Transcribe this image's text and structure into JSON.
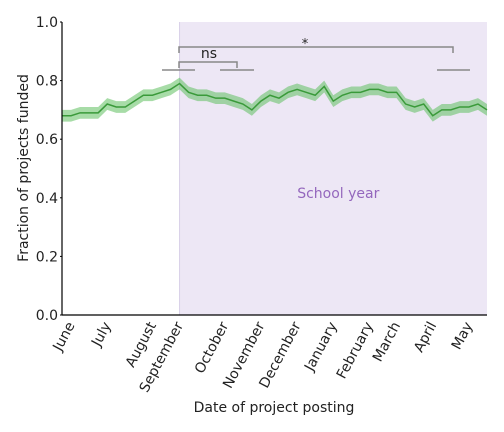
{
  "chart_data": {
    "type": "line",
    "x_label": "Date of project posting",
    "y_label": "Fraction of projects funded",
    "categories": [
      null,
      "June",
      null,
      null,
      null,
      "July",
      null,
      null,
      null,
      null,
      "August",
      null,
      null,
      "September",
      null,
      null,
      null,
      null,
      "October",
      null,
      null,
      null,
      "November",
      null,
      null,
      null,
      "December",
      null,
      null,
      null,
      "January",
      null,
      null,
      null,
      "February",
      null,
      null,
      "March",
      null,
      null,
      null,
      "April",
      null,
      null,
      null,
      "May",
      null,
      null
    ],
    "values": [
      0.68,
      0.68,
      0.69,
      0.69,
      0.69,
      0.72,
      0.71,
      0.71,
      0.73,
      0.75,
      0.75,
      0.76,
      0.77,
      0.79,
      0.76,
      0.75,
      0.75,
      0.74,
      0.74,
      0.73,
      0.72,
      0.7,
      0.73,
      0.75,
      0.74,
      0.76,
      0.77,
      0.76,
      0.75,
      0.78,
      0.73,
      0.75,
      0.76,
      0.76,
      0.77,
      0.77,
      0.76,
      0.76,
      0.72,
      0.71,
      0.72,
      0.68,
      0.7,
      0.7,
      0.71,
      0.71,
      0.72,
      0.7
    ],
    "lower": [
      0.66,
      0.66,
      0.67,
      0.67,
      0.67,
      0.7,
      0.69,
      0.69,
      0.71,
      0.73,
      0.73,
      0.74,
      0.75,
      0.77,
      0.74,
      0.73,
      0.73,
      0.72,
      0.72,
      0.71,
      0.7,
      0.68,
      0.71,
      0.73,
      0.72,
      0.74,
      0.75,
      0.74,
      0.73,
      0.76,
      0.71,
      0.73,
      0.74,
      0.74,
      0.75,
      0.75,
      0.74,
      0.74,
      0.7,
      0.69,
      0.7,
      0.66,
      0.68,
      0.68,
      0.69,
      0.69,
      0.7,
      0.68
    ],
    "upper": [
      0.7,
      0.7,
      0.71,
      0.71,
      0.71,
      0.74,
      0.73,
      0.73,
      0.75,
      0.77,
      0.77,
      0.78,
      0.79,
      0.81,
      0.78,
      0.77,
      0.77,
      0.76,
      0.76,
      0.75,
      0.74,
      0.72,
      0.75,
      0.77,
      0.76,
      0.78,
      0.79,
      0.78,
      0.77,
      0.8,
      0.75,
      0.77,
      0.78,
      0.78,
      0.79,
      0.79,
      0.78,
      0.78,
      0.74,
      0.73,
      0.74,
      0.7,
      0.72,
      0.72,
      0.73,
      0.73,
      0.74,
      0.72
    ],
    "color": "#3a9a3a",
    "band_color": "#5fbf5f",
    "ylim": [
      0,
      1
    ],
    "yticks": [
      {
        "value": 0,
        "label": "0.0"
      },
      {
        "value": 0.2,
        "label": "0.2"
      },
      {
        "value": 0.4,
        "label": "0.4"
      },
      {
        "value": 0.6,
        "label": "0.6"
      },
      {
        "value": 0.8,
        "label": "0.8"
      },
      {
        "value": 1,
        "label": "1.0"
      }
    ],
    "region": {
      "label": "School year",
      "start": 13,
      "color": "#ede7f5",
      "text_color": "#9467bd"
    },
    "annotations": {
      "ns": "ns",
      "star": "*"
    }
  }
}
